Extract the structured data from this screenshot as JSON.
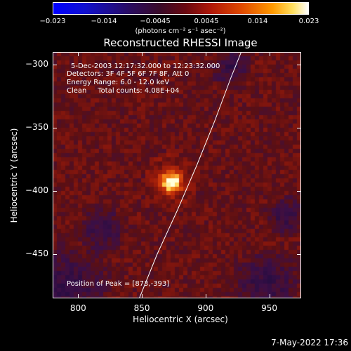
{
  "colorbar": {
    "tick_labels": [
      "−0.023",
      "−0.014",
      "−0.0045",
      "0.0045",
      "0.014",
      "0.023"
    ],
    "unit_label": "(photons cm⁻² s⁻¹ asec⁻²)"
  },
  "chart_data": {
    "type": "heatmap",
    "title": "Reconstructed RHESSI Image",
    "xlabel": "Heliocentric X (arcsec)",
    "ylabel": "Heliocentric Y (arcsec)",
    "xlim": [
      780,
      975
    ],
    "ylim": [
      -485,
      -290
    ],
    "x_ticks": [
      800,
      850,
      900,
      950
    ],
    "y_ticks": [
      -300,
      -350,
      -400,
      -450
    ],
    "x_tick_labels": [
      "800",
      "850",
      "900",
      "950"
    ],
    "y_tick_labels": [
      "−300",
      "−350",
      "−400",
      "−450"
    ],
    "color_range": [
      -0.023,
      0.023
    ],
    "peak": {
      "x": 873,
      "y": -393
    },
    "annotations": {
      "time_range": "5-Dec-2003 12:17:32.000 to 12:23:32.000",
      "detectors": "Detectors: 3F 4F 5F 6F 7F 8F, Att 0",
      "energy_range": "Energy Range: 6.0 - 12.0 keV",
      "clean_counts": "Clean     Total counts: 4.08E+04",
      "peak_position": "Position of Peak = [873,-393]"
    },
    "limb_curve": [
      [
        848,
        -485
      ],
      [
        862,
        -450
      ],
      [
        878,
        -415
      ],
      [
        893,
        -380
      ],
      [
        907,
        -345
      ],
      [
        920,
        -310
      ],
      [
        928,
        -290
      ]
    ]
  },
  "footer": {
    "datetime": "7-May-2022 17:36"
  }
}
